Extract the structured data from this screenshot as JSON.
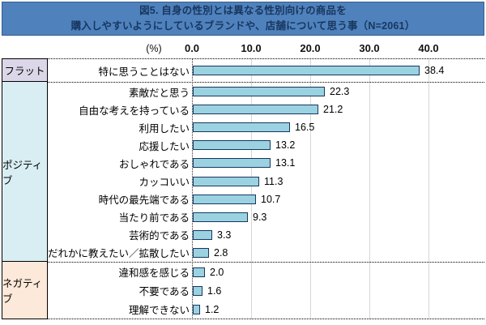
{
  "title": {
    "line1": "図5. 自身の性別とは異なる性別向けの商品を",
    "line2": "購入しやすいようにしているブランドや、店舗について思う事（N=2061）"
  },
  "axis": {
    "unit_label": "(%)",
    "ticks": [
      "0.0",
      "10.0",
      "20.0",
      "30.0",
      "40.0"
    ]
  },
  "chart_data": {
    "type": "bar",
    "orientation": "horizontal",
    "title": "図5. 自身の性別とは異なる性別向けの商品を購入しやすいようにしているブランドや、店舗について思う事（N=2061）",
    "sample_size": "N=2061",
    "xlabel": "(%)",
    "xlim": [
      0,
      40
    ],
    "grid": true,
    "gridline_interval": 10,
    "sections": [
      {
        "name": "フラット",
        "color": "#DBD7E8",
        "rows": [
          {
            "label": "特に思うことはない",
            "value": 38.4
          }
        ]
      },
      {
        "name": "ポジティブ",
        "color": "#D9EEF3",
        "rows": [
          {
            "label": "素敵だと思う",
            "value": 22.3
          },
          {
            "label": "自由な考えを持っている",
            "value": 21.2
          },
          {
            "label": "利用したい",
            "value": 16.5
          },
          {
            "label": "応援したい",
            "value": 13.2
          },
          {
            "label": "おしゃれである",
            "value": 13.1
          },
          {
            "label": "カッコいい",
            "value": 11.3
          },
          {
            "label": "時代の最先端である",
            "value": 10.7
          },
          {
            "label": "当たり前である",
            "value": 9.3
          },
          {
            "label": "芸術的である",
            "value": 3.3
          },
          {
            "label": "だれかに教えたい／拡散したい",
            "value": 2.8
          }
        ]
      },
      {
        "name": "ネガティブ",
        "color": "#FDE9D9",
        "rows": [
          {
            "label": "違和感を感じる",
            "value": 2.0
          },
          {
            "label": "不要である",
            "value": 1.6
          },
          {
            "label": "理解できない",
            "value": 1.2
          }
        ]
      }
    ],
    "bar_fill": "#9BD2E1",
    "bar_border": "#17375E"
  },
  "colors": {
    "banner_bg": "#4F81BD",
    "banner_border": "#385D8A",
    "banner_text": "#17375E",
    "gridline": "#D6D6D6"
  }
}
